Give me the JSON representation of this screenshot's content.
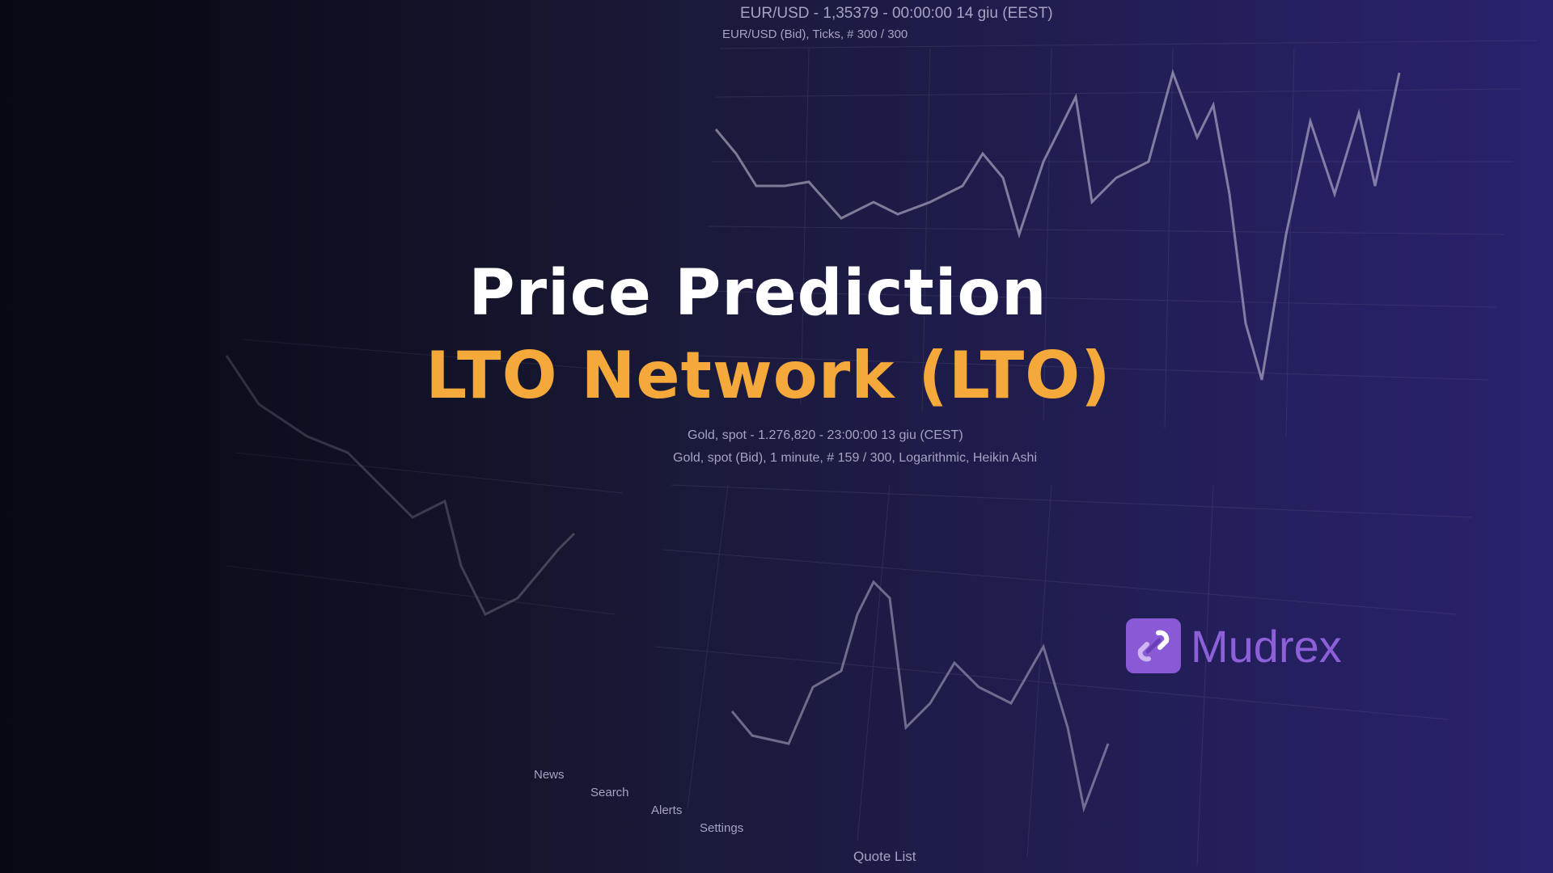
{
  "banner": {
    "title": "Price Prediction",
    "subtitle": "LTO Network (LTO)",
    "title_color": "#ffffff",
    "subtitle_color": "#f4a93a"
  },
  "brand": {
    "name": "Mudrex",
    "color": "#8a5ad6",
    "icon": "mudrex-link-logo-icon"
  },
  "background_photo": {
    "top_chart_header": "EUR/USD - 1,35379 - 00:00:00  14 giu (EEST)",
    "top_chart_subtitle": "EUR/USD (Bid), Ticks, # 300 / 300",
    "bottom_chart_header": "Gold, spot - 1.276,820 - 23:00:00  13 giu (CEST)",
    "bottom_chart_subtitle": "Gold, spot (Bid), 1 minute, # 159 / 300, Logarithmic, Heikin Ashi",
    "tabs": [
      "News",
      "Search",
      "Alerts",
      "Settings"
    ],
    "quote_list": "Quote List"
  }
}
